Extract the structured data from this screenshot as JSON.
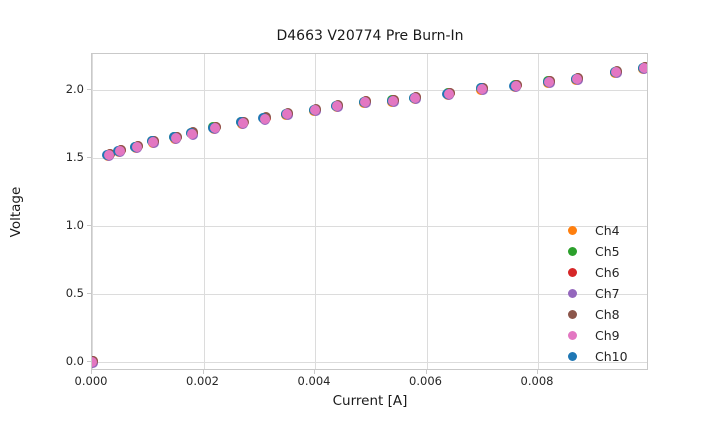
{
  "chart_data": {
    "type": "scatter",
    "title": "D4663 V20774 Pre Burn-In",
    "xlabel": "Current [A]",
    "ylabel": "Voltage",
    "xlim": [
      0.0,
      0.01
    ],
    "ylim": [
      -0.07,
      2.27
    ],
    "xticks": [
      0.0,
      0.002,
      0.004,
      0.006,
      0.008
    ],
    "yticks": [
      0.0,
      0.5,
      1.0,
      1.5,
      2.0
    ],
    "grid": true,
    "legend_position": "lower right",
    "legend_frame": false,
    "channels": [
      {
        "label": "Ch4",
        "color": "#ff7f0e"
      },
      {
        "label": "Ch5",
        "color": "#2ca02c"
      },
      {
        "label": "Ch6",
        "color": "#d62728"
      },
      {
        "label": "Ch7",
        "color": "#9467bd"
      },
      {
        "label": "Ch8",
        "color": "#8c564b"
      },
      {
        "label": "Ch9",
        "color": "#e377c2"
      },
      {
        "label": "Ch10",
        "color": "#1f77b4"
      }
    ],
    "overlap_note": "All seven channel curves overlap at screen resolution; Ch9 (pink) is drawn on top with slivers of the other channel colors visible at dot edges",
    "points": {
      "current_a": [
        0.0,
        0.0003,
        0.0005,
        0.0008,
        0.0011,
        0.0015,
        0.0018,
        0.0022,
        0.0027,
        0.0031,
        0.0035,
        0.004,
        0.0044,
        0.0049,
        0.0054,
        0.0058,
        0.0064,
        0.007,
        0.0076,
        0.0082,
        0.0087,
        0.0094,
        0.0099
      ],
      "voltage_v": [
        0.0,
        1.52,
        1.55,
        1.58,
        1.62,
        1.65,
        1.68,
        1.72,
        1.76,
        1.79,
        1.82,
        1.85,
        1.88,
        1.91,
        1.92,
        1.94,
        1.97,
        2.01,
        2.03,
        2.06,
        2.08,
        2.13,
        2.16
      ]
    },
    "x_tick_format": "0.000",
    "y_tick_format": "0.0"
  }
}
